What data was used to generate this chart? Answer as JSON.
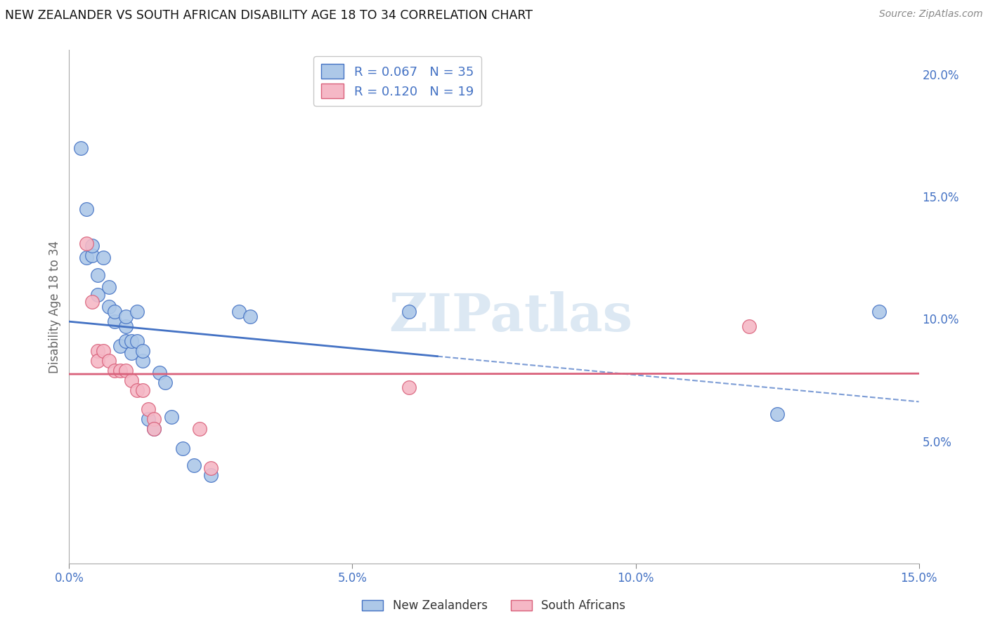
{
  "title": "NEW ZEALANDER VS SOUTH AFRICAN DISABILITY AGE 18 TO 34 CORRELATION CHART",
  "source": "Source: ZipAtlas.com",
  "ylabel": "Disability Age 18 to 34",
  "xlim": [
    0.0,
    0.15
  ],
  "ylim": [
    0.0,
    0.21
  ],
  "xticks": [
    0.0,
    0.05,
    0.1,
    0.15
  ],
  "xticklabels": [
    "0.0%",
    "5.0%",
    "10.0%",
    "15.0%"
  ],
  "yticks_right": [
    0.05,
    0.1,
    0.15,
    0.2
  ],
  "ytick_labels_right": [
    "5.0%",
    "10.0%",
    "15.0%",
    "20.0%"
  ],
  "legend_labels": [
    "New Zealanders",
    "South Africans"
  ],
  "nz_face_color": "#adc8e8",
  "sa_face_color": "#f5b8c6",
  "nz_edge_color": "#4472c4",
  "sa_edge_color": "#d9607a",
  "nz_line_color": "#4472c4",
  "sa_line_color": "#d9607a",
  "nz_R": "0.067",
  "nz_N": "35",
  "sa_R": "0.120",
  "sa_N": "19",
  "nz_points_x": [
    0.002,
    0.003,
    0.003,
    0.004,
    0.004,
    0.005,
    0.005,
    0.006,
    0.007,
    0.007,
    0.008,
    0.008,
    0.009,
    0.01,
    0.01,
    0.01,
    0.011,
    0.011,
    0.012,
    0.012,
    0.013,
    0.013,
    0.014,
    0.015,
    0.016,
    0.017,
    0.018,
    0.02,
    0.022,
    0.025,
    0.03,
    0.032,
    0.06,
    0.125,
    0.143
  ],
  "nz_points_y": [
    0.17,
    0.145,
    0.125,
    0.126,
    0.13,
    0.11,
    0.118,
    0.125,
    0.105,
    0.113,
    0.099,
    0.103,
    0.089,
    0.097,
    0.101,
    0.091,
    0.086,
    0.091,
    0.103,
    0.091,
    0.083,
    0.087,
    0.059,
    0.055,
    0.078,
    0.074,
    0.06,
    0.047,
    0.04,
    0.036,
    0.103,
    0.101,
    0.103,
    0.061,
    0.103
  ],
  "sa_points_x": [
    0.003,
    0.004,
    0.005,
    0.005,
    0.006,
    0.007,
    0.008,
    0.009,
    0.01,
    0.011,
    0.012,
    0.013,
    0.014,
    0.015,
    0.015,
    0.023,
    0.025,
    0.06,
    0.12
  ],
  "sa_points_y": [
    0.131,
    0.107,
    0.087,
    0.083,
    0.087,
    0.083,
    0.079,
    0.079,
    0.079,
    0.075,
    0.071,
    0.071,
    0.063,
    0.059,
    0.055,
    0.055,
    0.039,
    0.072,
    0.097
  ],
  "background_color": "#ffffff",
  "grid_color": "#d0d0d0",
  "watermark": "ZIPatlas",
  "watermark_color": "#dce8f3"
}
